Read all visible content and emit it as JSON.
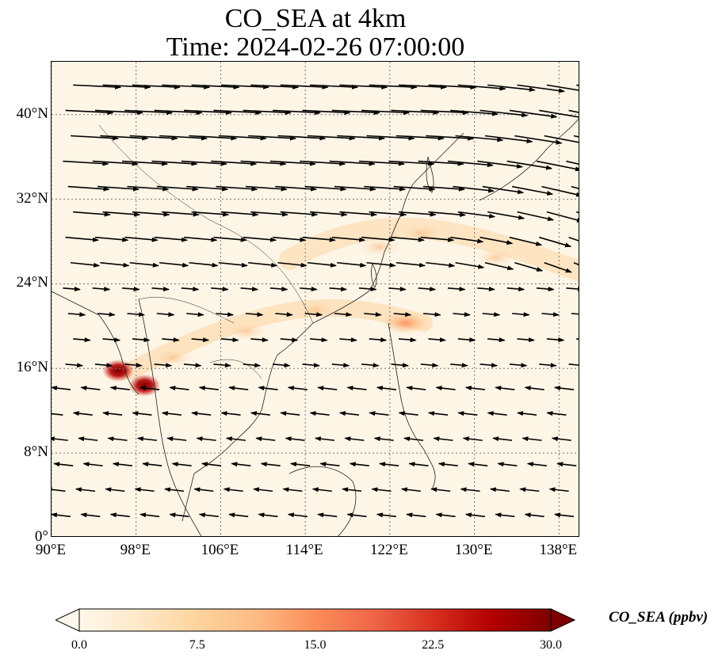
{
  "title_line1": "CO_SEA at 4km",
  "title_line2": "Time: 2024-02-26 07:00:00",
  "map": {
    "lon_range": [
      90,
      140
    ],
    "lat_range": [
      0,
      45
    ],
    "x_ticks": [
      {
        "lon": 90,
        "label": "90°E"
      },
      {
        "lon": 98,
        "label": "98°E"
      },
      {
        "lon": 106,
        "label": "106°E"
      },
      {
        "lon": 114,
        "label": "114°E"
      },
      {
        "lon": 122,
        "label": "122°E"
      },
      {
        "lon": 130,
        "label": "130°E"
      },
      {
        "lon": 138,
        "label": "138°E"
      }
    ],
    "y_ticks": [
      {
        "lat": 0,
        "label": "0°"
      },
      {
        "lat": 8,
        "label": "8°N"
      },
      {
        "lat": 16,
        "label": "16°N"
      },
      {
        "lat": 24,
        "label": "24°N"
      },
      {
        "lat": 32,
        "label": "32°N"
      },
      {
        "lat": 40,
        "label": "40°N"
      }
    ],
    "gridlines": true,
    "plume_hotspots": [
      {
        "lon": 96.3,
        "lat": 15.8,
        "value": 30
      },
      {
        "lon": 98.8,
        "lat": 14.4,
        "value": 30
      },
      {
        "lon": 101.5,
        "lat": 17.0,
        "value": 9
      },
      {
        "lon": 108.5,
        "lat": 19.5,
        "value": 7
      },
      {
        "lon": 115.0,
        "lat": 21.5,
        "value": 6
      },
      {
        "lon": 123.5,
        "lat": 20.3,
        "value": 14
      },
      {
        "lon": 121.0,
        "lat": 27.5,
        "value": 6
      },
      {
        "lon": 125.0,
        "lat": 28.8,
        "value": 7
      },
      {
        "lon": 132.0,
        "lat": 26.5,
        "value": 5
      }
    ],
    "wind_vectors_note": ""
  },
  "colorbar": {
    "label": "CO_SEA (ppbv)",
    "min": 0.0,
    "max": 30.0,
    "ticks": [
      "0.0",
      "7.5",
      "15.0",
      "22.5",
      "30.0"
    ],
    "colormap_stops": [
      "#fff7ec",
      "#fee8c8",
      "#fdd49e",
      "#fdbb84",
      "#fc8d59",
      "#ef6548",
      "#d7301f",
      "#b30000",
      "#7f0000"
    ]
  }
}
